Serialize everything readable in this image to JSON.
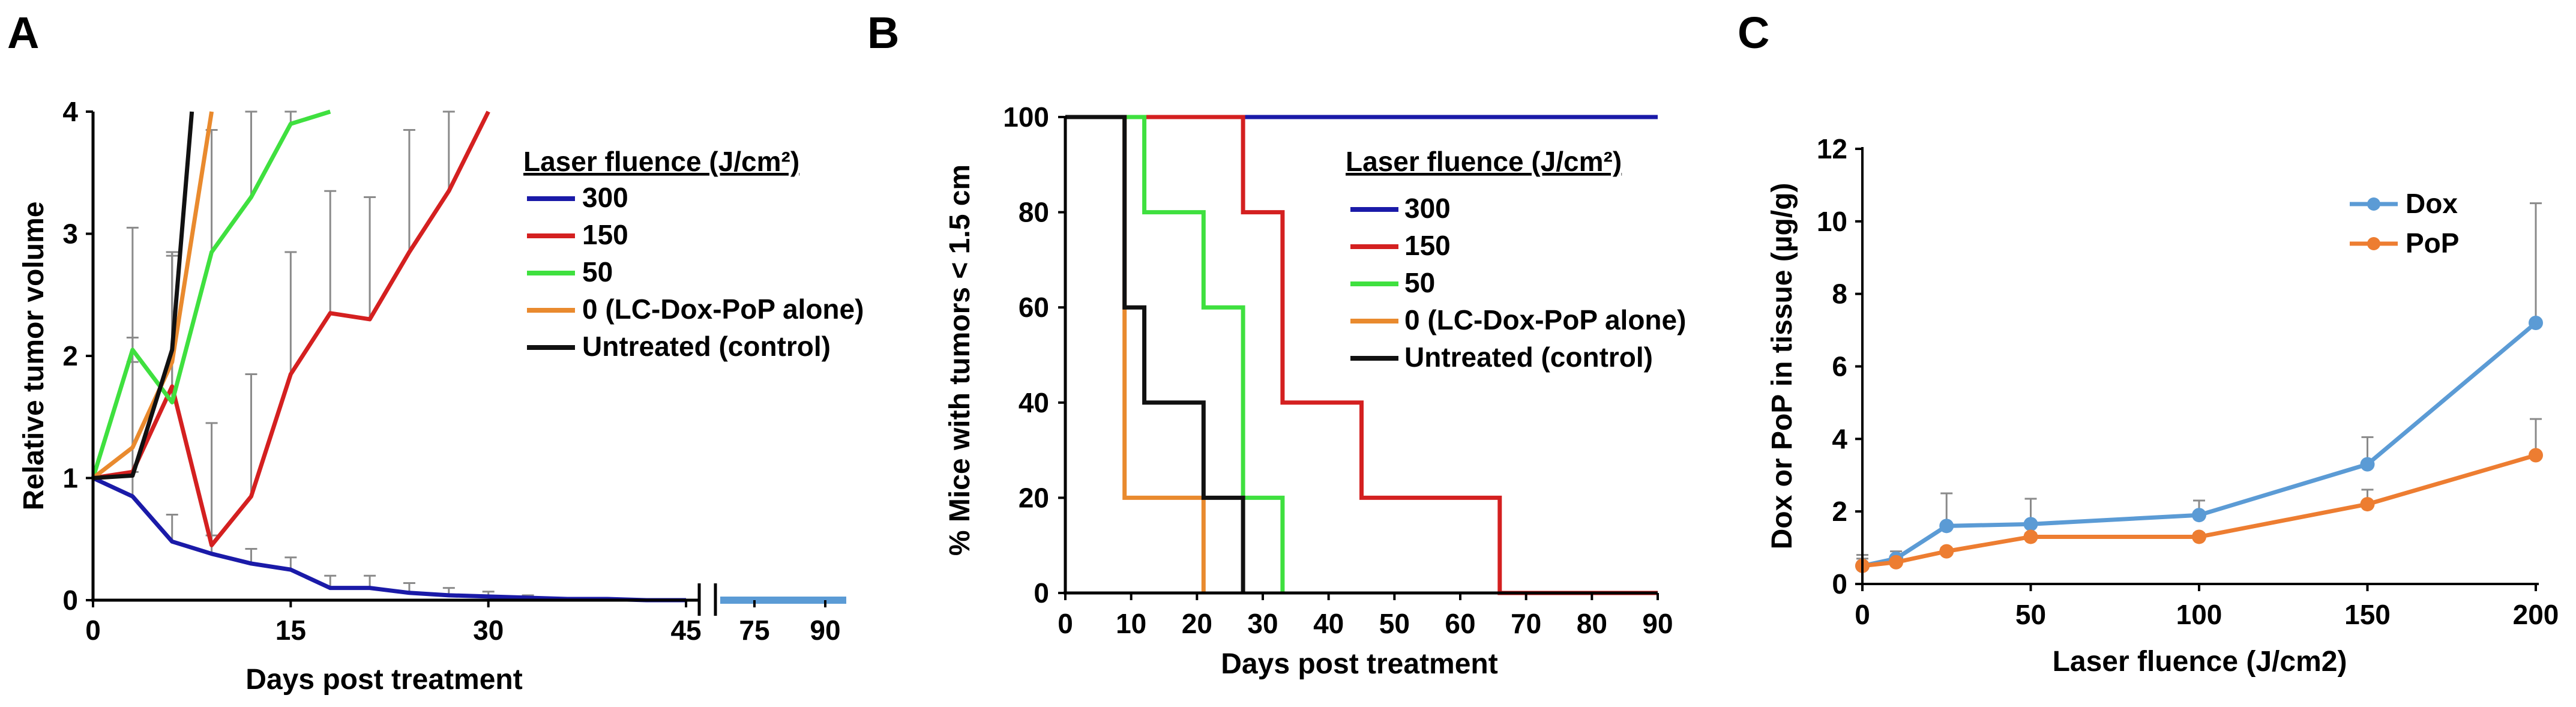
{
  "chart_data": [
    {
      "panel": "A",
      "type": "line",
      "xlabel": "Days post treatment",
      "ylabel": "Relative tumor volume",
      "ylim": [
        0,
        4
      ],
      "xlim": [
        0,
        46
      ],
      "x_ticks": [
        "0",
        "15",
        "30",
        "45"
      ],
      "x_ticks_after_break": [
        "75",
        "90"
      ],
      "y_ticks": [
        "0",
        "1",
        "2",
        "3",
        "4"
      ],
      "legend_title": "Laser fluence (J/cm²)",
      "legend": [
        "300",
        "150",
        "50",
        "0 (LC-Dox-PoP alone)",
        "Untreated (control)"
      ],
      "series": [
        {
          "name": "300",
          "color": "#1a1aa8",
          "x": [
            0,
            3,
            6,
            9,
            12,
            15,
            18,
            21,
            24,
            27,
            30,
            33,
            36,
            39,
            42,
            45
          ],
          "y": [
            1,
            0.85,
            0.48,
            0.38,
            0.3,
            0.25,
            0.1,
            0.1,
            0.06,
            0.04,
            0.03,
            0.02,
            0.01,
            0.01,
            0,
            0
          ],
          "err": [
            0,
            0.2,
            0.22,
            0.15,
            0.12,
            0.1,
            0.1,
            0.1,
            0.08,
            0.06,
            0.04,
            0.02,
            0,
            0,
            0,
            0
          ]
        },
        {
          "name": "150",
          "color": "#d42020",
          "x": [
            0,
            3,
            6,
            9,
            12,
            15,
            18,
            21,
            24,
            27,
            30
          ],
          "y": [
            1,
            1.05,
            1.75,
            0.45,
            0.85,
            1.85,
            2.35,
            2.3,
            2.85,
            3.35,
            4.0
          ],
          "err": [
            0,
            0.9,
            1.1,
            1.0,
            1.0,
            1.0,
            1.0,
            1.0,
            1.0,
            1.0,
            0
          ]
        },
        {
          "name": "50",
          "color": "#3fe03f",
          "x": [
            0,
            3,
            6,
            9,
            12,
            15,
            18
          ],
          "y": [
            1,
            2.05,
            1.62,
            2.85,
            3.3,
            3.9,
            4.0
          ],
          "err": [
            0,
            1.0,
            1.2,
            1.0,
            1.0,
            0.2,
            0
          ]
        },
        {
          "name": "0 (LC-Dox-PoP alone)",
          "color": "#e98a2e",
          "x": [
            0,
            3,
            6,
            9
          ],
          "y": [
            1,
            1.25,
            1.95,
            4.0
          ],
          "err": [
            0,
            0.9,
            0.9,
            0
          ]
        },
        {
          "name": "Untreated (control)",
          "color": "#111111",
          "x": [
            0,
            3,
            6,
            7.5
          ],
          "y": [
            1,
            1.02,
            2.05,
            4.0
          ],
          "err": [
            0,
            0,
            0,
            0
          ]
        }
      ]
    },
    {
      "panel": "B",
      "type": "line",
      "xlabel": "Days post treatment",
      "ylabel": "% Mice with tumors < 1.5 cm",
      "xlim": [
        0,
        90
      ],
      "ylim": [
        0,
        100
      ],
      "x_ticks": [
        "0",
        "10",
        "20",
        "30",
        "40",
        "50",
        "60",
        "70",
        "80",
        "90"
      ],
      "y_ticks": [
        "0",
        "20",
        "40",
        "60",
        "80",
        "100"
      ],
      "legend_title": "Laser fluence (J/cm²)",
      "legend": [
        "300",
        "150",
        "50",
        "0 (LC-Dox-PoP alone)",
        "Untreated (control)"
      ],
      "series": [
        {
          "name": "300",
          "color": "#1a1aa8",
          "x": [
            0,
            90
          ],
          "y": [
            100,
            100
          ]
        },
        {
          "name": "150",
          "color": "#d42020",
          "x": [
            0,
            27,
            27,
            33,
            33,
            45,
            45,
            66,
            66,
            90
          ],
          "y": [
            100,
            100,
            80,
            80,
            40,
            40,
            20,
            20,
            0,
            0
          ]
        },
        {
          "name": "50",
          "color": "#3fe03f",
          "x": [
            0,
            12,
            12,
            21,
            21,
            27,
            27,
            33,
            33
          ],
          "y": [
            100,
            100,
            80,
            80,
            60,
            60,
            20,
            20,
            0
          ]
        },
        {
          "name": "0 (LC-Dox-PoP alone)",
          "color": "#e98a2e",
          "x": [
            0,
            9,
            9,
            21,
            21
          ],
          "y": [
            100,
            100,
            20,
            20,
            0
          ]
        },
        {
          "name": "Untreated (control)",
          "color": "#111111",
          "x": [
            0,
            9,
            9,
            12,
            12,
            21,
            21,
            27,
            27
          ],
          "y": [
            100,
            100,
            60,
            60,
            40,
            40,
            20,
            20,
            0
          ]
        }
      ]
    },
    {
      "panel": "C",
      "type": "line",
      "xlabel": "Laser fluence (J/cm2)",
      "ylabel": "Dox or PoP in tissue (µg/g)",
      "xlim": [
        0,
        200
      ],
      "ylim": [
        0,
        12
      ],
      "x_ticks": [
        "0",
        "50",
        "100",
        "150",
        "200"
      ],
      "y_ticks": [
        "0",
        "2",
        "4",
        "6",
        "8",
        "10",
        "12"
      ],
      "legend": [
        "Dox",
        "PoP"
      ],
      "series": [
        {
          "name": "Dox",
          "color": "#5b9bd5",
          "x": [
            0,
            10,
            25,
            50,
            100,
            150,
            200
          ],
          "y": [
            0.5,
            0.7,
            1.6,
            1.65,
            1.9,
            3.3,
            7.2
          ],
          "err": [
            0.3,
            0.2,
            0.9,
            0.7,
            0.4,
            0.75,
            3.3
          ]
        },
        {
          "name": "PoP",
          "color": "#ed7d31",
          "x": [
            0,
            10,
            25,
            50,
            100,
            150,
            200
          ],
          "y": [
            0.5,
            0.6,
            0.9,
            1.3,
            1.3,
            2.2,
            3.55
          ],
          "err": [
            0.2,
            0.1,
            0.1,
            0.1,
            0.1,
            0.4,
            1.0
          ]
        }
      ]
    }
  ]
}
